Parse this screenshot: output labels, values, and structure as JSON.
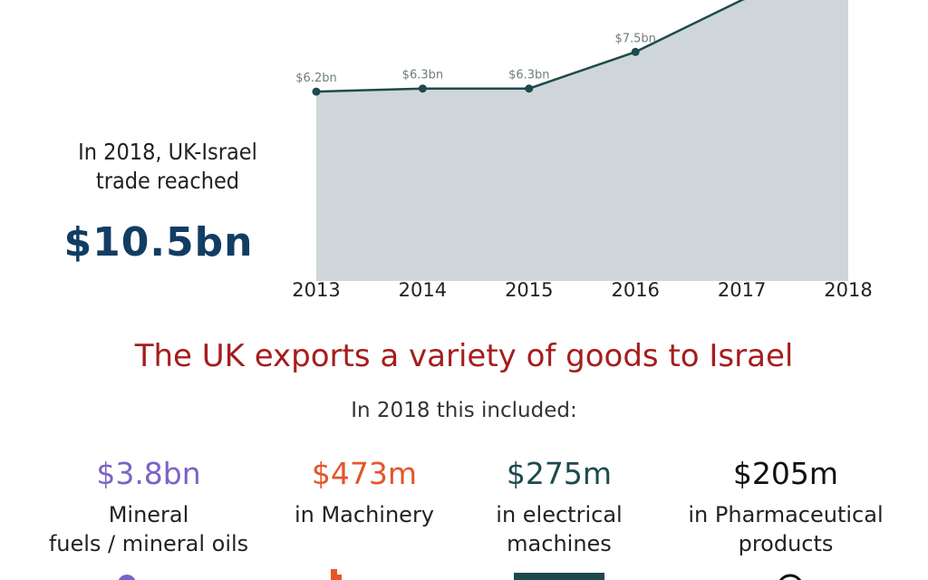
{
  "chart_data": {
    "type": "area",
    "categories": [
      "2013",
      "2014",
      "2015",
      "2016",
      "2017",
      "2018"
    ],
    "series": [
      {
        "values": [
          6.2,
          6.3,
          6.3,
          7.5,
          9.2,
          10.5
        ],
        "labels": [
          "$6.2bn",
          "$6.3bn",
          "$6.3bn",
          "$7.5bn",
          "",
          ""
        ]
      }
    ],
    "ylim": [
      0,
      9.2
    ],
    "grid": false,
    "colors": {
      "fill": "#cfd6d9",
      "line": "#1f4a4d",
      "label": "#6f7c80"
    }
  },
  "headline": {
    "line1": "In 2018, UK-Israel",
    "line2": "trade reached",
    "total": "$10.5bn"
  },
  "exports": {
    "title": "The UK exports a variety of goods to Israel",
    "subtitle": "In 2018 this included:",
    "items": [
      {
        "value": "$3.8bn",
        "desc_line1": "Mineral",
        "desc_line2": "fuels / mineral oils",
        "color": "#7b63c6"
      },
      {
        "value": "$473m",
        "desc_line1": "in Machinery",
        "desc_line2": "",
        "color": "#e4552a"
      },
      {
        "value": "$275m",
        "desc_line1": "in electrical",
        "desc_line2": "machines",
        "color": "#1e4a4f"
      },
      {
        "value": "$205m",
        "desc_line1": "in Pharmaceutical",
        "desc_line2": "products",
        "color": "#111111"
      }
    ]
  }
}
